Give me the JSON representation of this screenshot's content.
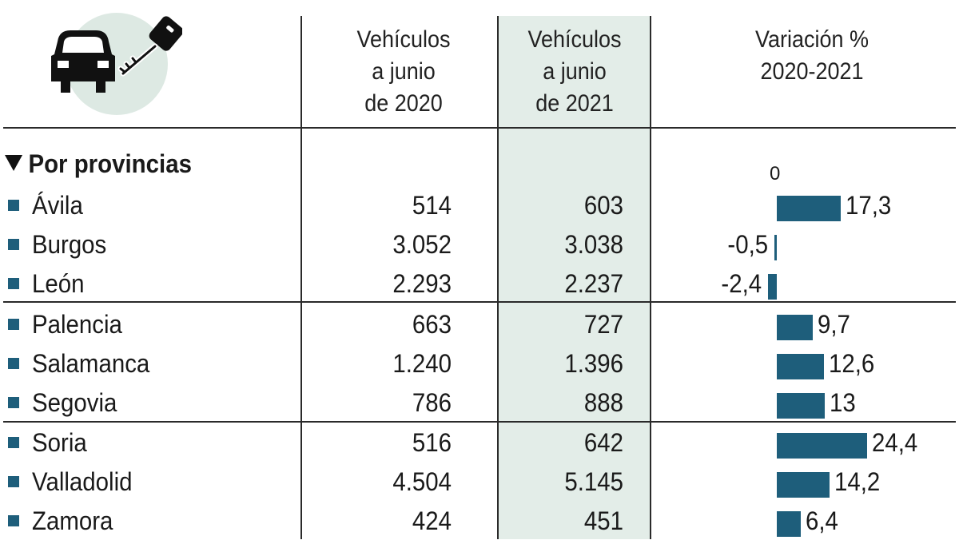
{
  "icon": "car-key-icon",
  "columns": {
    "c2020": [
      "Vehículos",
      "a junio",
      "de 2020"
    ],
    "c2021": [
      "Vehículos",
      "a junio",
      "de 2021"
    ],
    "variation": [
      "Variación %",
      "2020-2021"
    ]
  },
  "section_label": "Por provincias",
  "zero_label": "0",
  "colors": {
    "bar": "#1e5e7b",
    "highlight_column": "#e3ede8"
  },
  "chart_data": {
    "type": "bar",
    "orientation": "horizontal",
    "title": "",
    "categories": [
      "Ávila",
      "Burgos",
      "León",
      "Palencia",
      "Salamanca",
      "Segovia",
      "Soria",
      "Valladolid",
      "Zamora"
    ],
    "columns": [
      "Vehículos a junio de 2020",
      "Vehículos a junio de 2021",
      "Variación % 2020-2021"
    ],
    "values_2020": [
      "514",
      "3.052",
      "2.293",
      "663",
      "1.240",
      "786",
      "516",
      "4.504",
      "424"
    ],
    "values_2021": [
      "603",
      "3.038",
      "2.237",
      "727",
      "1.396",
      "888",
      "642",
      "5.145",
      "451"
    ],
    "variation_labels": [
      "17,3",
      "-0,5",
      "-2,4",
      "9,7",
      "12,6",
      "13",
      "24,4",
      "14,2",
      "6,4"
    ],
    "variation": [
      17.3,
      -0.5,
      -2.4,
      9.7,
      12.6,
      13,
      24.4,
      14.2,
      6.4
    ]
  }
}
